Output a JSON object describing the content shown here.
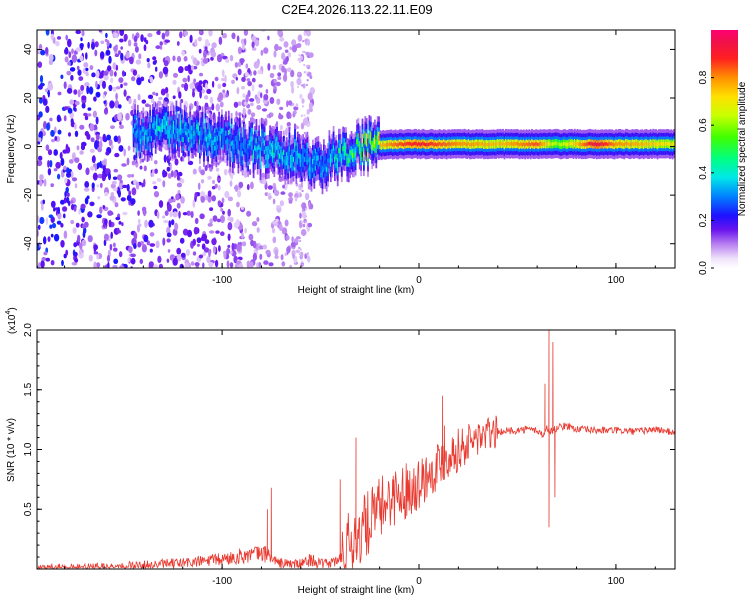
{
  "title": "C2E4.2026.113.22.11.E09",
  "colors": {
    "snr_line": "#e83a30",
    "axis": "#000000",
    "track_core": "#e8202a",
    "background": "#ffffff"
  },
  "chart_data": [
    {
      "id": "spectrogram",
      "type": "heatmap",
      "title": "C2E4.2026.113.22.11.E09",
      "xlabel": "Height of straight line (km)",
      "ylabel": "Frequency (Hz)",
      "xlim": [
        -194,
        130
      ],
      "ylim": [
        -50,
        48
      ],
      "xticks": [
        -100,
        0,
        100
      ],
      "yticks": [
        -40,
        -20,
        0,
        20,
        40
      ],
      "grid": false,
      "colorbar": {
        "label": "Normalized spectral amplitude",
        "range": [
          0,
          1
        ],
        "ticks": [
          "0.0",
          "0.2",
          "0.4",
          "0.6",
          "0.8"
        ],
        "tick_values": [
          0,
          0.2,
          0.4,
          0.6,
          0.8
        ]
      },
      "signal_track": {
        "height_km": [
          -145,
          -120,
          -100,
          -80,
          -60,
          -50,
          -40,
          -30,
          -20,
          -10,
          0,
          20,
          40,
          60,
          70,
          80,
          90,
          100,
          130
        ],
        "frequency_hz": [
          6,
          6,
          3,
          -1,
          -4,
          -7,
          -3,
          -0.5,
          0.5,
          1,
          1,
          1,
          1,
          1,
          1,
          1,
          1,
          1,
          1
        ],
        "amplitude": [
          0.35,
          0.4,
          0.35,
          0.4,
          0.35,
          0.3,
          0.45,
          0.55,
          0.75,
          0.85,
          0.9,
          0.8,
          0.75,
          0.85,
          0.6,
          0.75,
          0.95,
          0.8,
          0.7
        ]
      }
    },
    {
      "id": "snr",
      "type": "line",
      "xlabel": "Height of straight line (km)",
      "ylabel": "SNR (10 * v/v)",
      "y_multiplier_label": "(x10",
      "y_multiplier_exp": "4",
      "xlim": [
        -194,
        130
      ],
      "ylim": [
        0,
        2.0
      ],
      "xticks": [
        -100,
        0,
        100
      ],
      "yticks": [
        0.5,
        1.0,
        1.5,
        2.0
      ],
      "ytick_labels": [
        "0.5",
        "1.0",
        "1.5",
        "2.0"
      ],
      "grid": false,
      "series": [
        {
          "name": "SNR",
          "x": [
            -194,
            -160,
            -140,
            -120,
            -100,
            -90,
            -80,
            -76,
            -72,
            -60,
            -55,
            -50,
            -45,
            -40,
            -35,
            -30,
            -25,
            -20,
            -15,
            -10,
            -5,
            0,
            5,
            10,
            15,
            20,
            25,
            30,
            40,
            50,
            55,
            60,
            63,
            65,
            67,
            70,
            75,
            80,
            90,
            100,
            110,
            120,
            130
          ],
          "y": [
            0.01,
            0.02,
            0.03,
            0.05,
            0.08,
            0.11,
            0.13,
            0.12,
            0.05,
            0.04,
            0.08,
            0.04,
            0.05,
            0.08,
            0.2,
            0.3,
            0.4,
            0.5,
            0.6,
            0.62,
            0.68,
            0.72,
            0.8,
            0.88,
            0.95,
            1.0,
            1.05,
            1.1,
            1.15,
            1.16,
            1.17,
            1.16,
            1.12,
            1.18,
            1.15,
            1.18,
            1.2,
            1.17,
            1.16,
            1.16,
            1.15,
            1.17,
            1.14
          ]
        }
      ],
      "peaks": [
        {
          "x": -75,
          "y": 0.68
        },
        {
          "x": -77,
          "y": 0.5
        },
        {
          "x": -40,
          "y": 0.75
        },
        {
          "x": -32,
          "y": 1.1
        },
        {
          "x": -13,
          "y": 0.7
        },
        {
          "x": 12,
          "y": 1.45
        },
        {
          "x": 13,
          "y": 1.2
        },
        {
          "x": 64,
          "y": 1.55
        },
        {
          "x": 66,
          "y": 2.0
        },
        {
          "x": 68,
          "y": 1.9
        },
        {
          "x": 66,
          "y": 0.35
        },
        {
          "x": 69,
          "y": 0.6
        }
      ]
    }
  ]
}
